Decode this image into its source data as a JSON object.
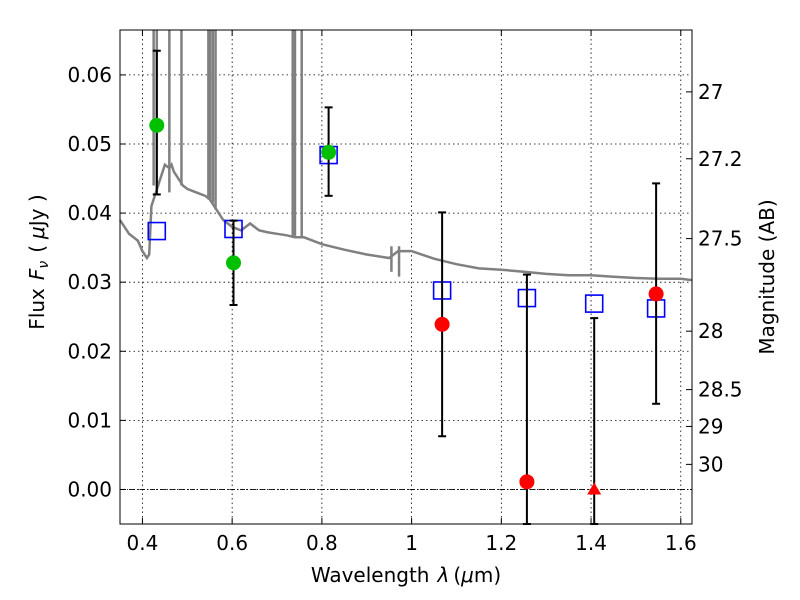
{
  "chart_data": {
    "type": "scatter",
    "xlabel": "Wavelength",
    "xlabel_symbol": "λ",
    "xlabel_unit_prefix": "(",
    "xlabel_unit_mu": "μ",
    "xlabel_unit_suffix": "m)",
    "ylabel": "Flux",
    "ylabel_symbol": "F",
    "ylabel_symbol_sub": "ν",
    "ylabel_unit_open": "(",
    "ylabel_unit_mu": "μ",
    "ylabel_unit_suffix": "Jy )",
    "y2label": "Magnitude (AB)",
    "xlim": [
      0.35,
      1.625
    ],
    "ylim": [
      -0.005,
      0.0665
    ],
    "grid": true,
    "x_ticks": [
      0.4,
      0.6,
      0.8,
      1.0,
      1.2,
      1.4,
      1.6
    ],
    "x_tick_labels": [
      "0.4",
      "0.6",
      "0.8",
      "1",
      "1.2",
      "1.4",
      "1.6"
    ],
    "y_ticks": [
      0.0,
      0.01,
      0.02,
      0.03,
      0.04,
      0.05,
      0.06
    ],
    "y_tick_labels": [
      "0.00",
      "0.01",
      "0.02",
      "0.03",
      "0.04",
      "0.05",
      "0.06"
    ],
    "y2_ticks": [
      {
        "label": "27",
        "mag": 27.0
      },
      {
        "label": "27.2",
        "mag": 27.2
      },
      {
        "label": "27.5",
        "mag": 27.5
      },
      {
        "label": "28",
        "mag": 28.0
      },
      {
        "label": "28.5",
        "mag": 28.5
      },
      {
        "label": "29",
        "mag": 29.0
      },
      {
        "label": "30",
        "mag": 30.0
      }
    ],
    "colors": {
      "model": "#808080",
      "green_points": "#00c000",
      "red_points": "#ff0000",
      "model_bands": "#0000ff",
      "error_bars": "#000000"
    },
    "series": [
      {
        "kind": "model_spectrum",
        "x": [
          0.35,
          0.37,
          0.39,
          0.4,
          0.41,
          0.415,
          0.42,
          0.43,
          0.44,
          0.45,
          0.46,
          0.465,
          0.47,
          0.48,
          0.49,
          0.5,
          0.52,
          0.54,
          0.55,
          0.56,
          0.57,
          0.58,
          0.6,
          0.62,
          0.64,
          0.66,
          0.68,
          0.7,
          0.72,
          0.74,
          0.76,
          0.78,
          0.8,
          0.85,
          0.9,
          0.95,
          0.97,
          1.0,
          1.05,
          1.1,
          1.15,
          1.2,
          1.25,
          1.3,
          1.35,
          1.4,
          1.45,
          1.5,
          1.55,
          1.6,
          1.625
        ],
        "y": [
          0.039,
          0.037,
          0.036,
          0.0345,
          0.0335,
          0.034,
          0.041,
          0.043,
          0.045,
          0.047,
          0.0465,
          0.047,
          0.046,
          0.045,
          0.044,
          0.0435,
          0.043,
          0.0425,
          0.042,
          0.041,
          0.04,
          0.039,
          0.038,
          0.0375,
          0.0385,
          0.0375,
          0.0372,
          0.037,
          0.0368,
          0.0365,
          0.0365,
          0.036,
          0.0355,
          0.0347,
          0.034,
          0.0335,
          0.0345,
          0.0345,
          0.0334,
          0.0326,
          0.032,
          0.0318,
          0.0315,
          0.0312,
          0.031,
          0.031,
          0.0308,
          0.0306,
          0.0305,
          0.0305,
          0.0303
        ]
      },
      {
        "kind": "model_band_flux",
        "marker": "open-square",
        "x": [
          0.432,
          0.603,
          0.815,
          1.068,
          1.257,
          1.407,
          1.545
        ],
        "y": [
          0.0374,
          0.0377,
          0.0484,
          0.0288,
          0.0277,
          0.0269,
          0.0262
        ]
      },
      {
        "kind": "detections",
        "marker": "circle",
        "color": "green",
        "x": [
          0.432,
          0.603,
          0.815
        ],
        "y": [
          0.0527,
          0.0328,
          0.0488
        ],
        "yerr_low": [
          0.0427,
          0.0267,
          0.0425
        ],
        "yerr_high": [
          0.0635,
          0.0389,
          0.0553
        ]
      },
      {
        "kind": "detections",
        "marker": "circle",
        "color": "red",
        "x": [
          1.068,
          1.257,
          1.545
        ],
        "y": [
          0.0239,
          0.0011,
          0.0283
        ],
        "yerr_low": [
          0.0077,
          -0.005,
          0.0124
        ],
        "yerr_high": [
          0.0401,
          0.0311,
          0.0443
        ]
      },
      {
        "kind": "upper_limit",
        "marker": "triangle",
        "color": "red",
        "x": [
          1.407
        ],
        "y": [
          0.0
        ],
        "yerr_low": [
          -0.005
        ],
        "yerr_high": [
          0.0248
        ]
      }
    ],
    "spikes": [
      {
        "x": 0.425,
        "y_bottom": 0.044
      },
      {
        "x": 0.432,
        "y_bottom": 0.043
      },
      {
        "x": 0.46,
        "y_bottom": 0.043
      },
      {
        "x": 0.487,
        "y_bottom": 0.044
      },
      {
        "x": 0.547,
        "y_bottom": 0.042
      },
      {
        "x": 0.551,
        "y_bottom": 0.042
      },
      {
        "x": 0.557,
        "y_bottom": 0.0415
      },
      {
        "x": 0.563,
        "y_bottom": 0.0405
      },
      {
        "x": 0.735,
        "y_bottom": 0.0367
      },
      {
        "x": 0.74,
        "y_bottom": 0.0367
      },
      {
        "x": 0.755,
        "y_bottom": 0.0365
      }
    ],
    "dips": [
      {
        "x": 0.955,
        "y_bottom": 0.0315
      },
      {
        "x": 0.972,
        "y_bottom": 0.0308
      }
    ]
  }
}
